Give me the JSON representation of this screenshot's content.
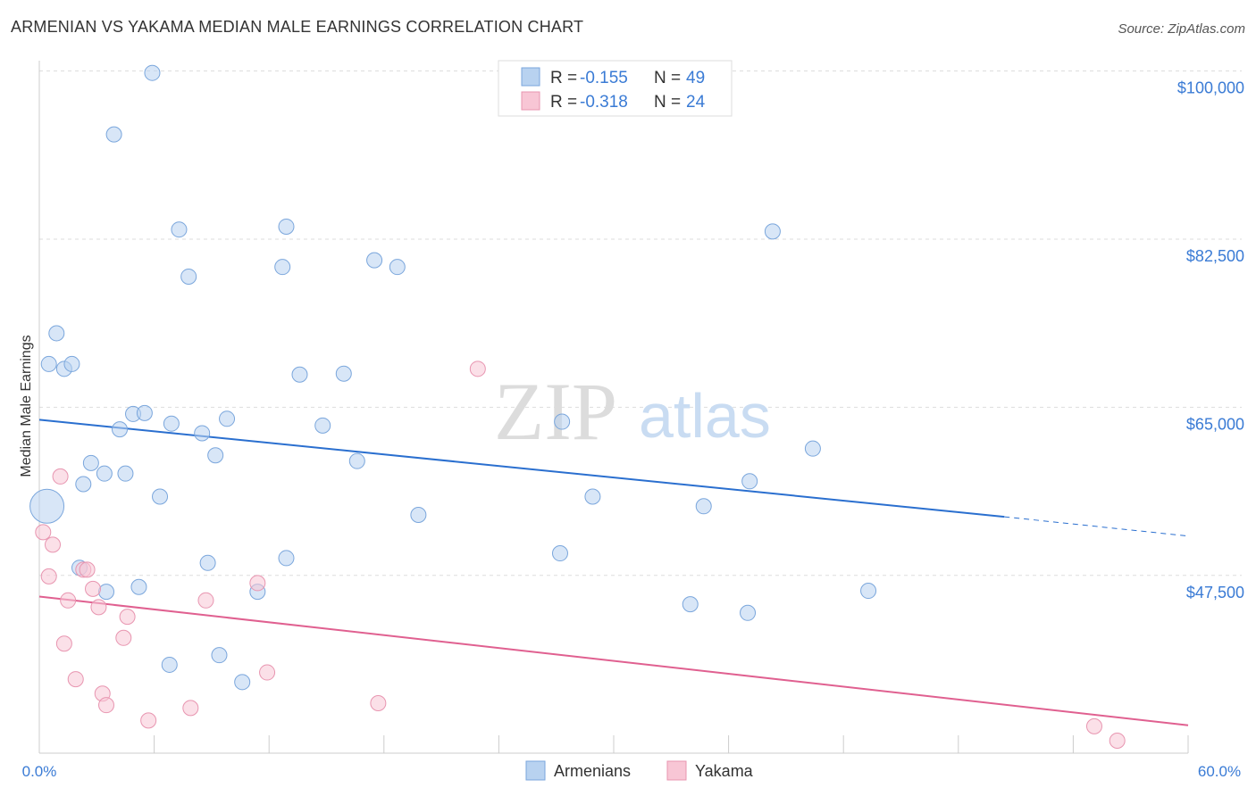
{
  "header": {
    "title": "ARMENIAN VS YAKAMA MEDIAN MALE EARNINGS CORRELATION CHART",
    "source": "Source: ZipAtlas.com"
  },
  "watermark": {
    "zip": "ZIP",
    "atlas": "atlas"
  },
  "legend": {
    "r_label": "R =",
    "n_label": "N =",
    "rows": [
      {
        "r": "-0.155",
        "n": "49"
      },
      {
        "r": "-0.318",
        "n": "24"
      }
    ]
  },
  "bottom_legend": [
    "Armenians",
    "Yakama"
  ],
  "colors": {
    "blue_fill": "#b8d2f0",
    "blue_stroke": "#7aa6dc",
    "blue_line": "#2a6fcf",
    "pink_fill": "#f8c6d5",
    "pink_stroke": "#e895b0",
    "pink_line": "#e06090",
    "grid": "#dddddd",
    "tick_text": "#3a7bd5"
  },
  "chart_data": {
    "type": "scatter",
    "title": "ARMENIAN VS YAKAMA MEDIAN MALE EARNINGS CORRELATION CHART",
    "ylabel": "Median Male Earnings",
    "xlabel": "",
    "xlim": [
      0,
      60
    ],
    "ylim": [
      29000,
      102000
    ],
    "x_tick_labels": [
      "0.0%",
      "60.0%"
    ],
    "y_ticks": [
      {
        "value": 100000,
        "label": "$100,000"
      },
      {
        "value": 82500,
        "label": "$82,500"
      },
      {
        "value": 65000,
        "label": "$65,000"
      },
      {
        "value": 47500,
        "label": "$47,500"
      }
    ],
    "grid": true,
    "legend_position": "top-center",
    "series": [
      {
        "name": "Armenians",
        "r": -0.155,
        "n": 49,
        "trend": {
          "x": [
            0,
            50.4
          ],
          "y": [
            63700,
            53600
          ]
        },
        "trend_dashed": {
          "x": [
            50.4,
            60
          ],
          "y": [
            53600,
            51600
          ]
        },
        "points": [
          {
            "x": 0.4,
            "y": 54700,
            "big": true
          },
          {
            "x": 0.5,
            "y": 69500
          },
          {
            "x": 0.9,
            "y": 72700
          },
          {
            "x": 1.3,
            "y": 69000
          },
          {
            "x": 1.7,
            "y": 69500
          },
          {
            "x": 2.3,
            "y": 57000
          },
          {
            "x": 2.7,
            "y": 59200
          },
          {
            "x": 3.4,
            "y": 58100
          },
          {
            "x": 2.1,
            "y": 48300
          },
          {
            "x": 3.5,
            "y": 45800
          },
          {
            "x": 4.2,
            "y": 62700
          },
          {
            "x": 4.5,
            "y": 58100
          },
          {
            "x": 4.9,
            "y": 64300
          },
          {
            "x": 5.5,
            "y": 64400
          },
          {
            "x": 5.2,
            "y": 46300
          },
          {
            "x": 6.3,
            "y": 55700
          },
          {
            "x": 6.9,
            "y": 63300
          },
          {
            "x": 8.5,
            "y": 62300
          },
          {
            "x": 8.8,
            "y": 48800
          },
          {
            "x": 9.2,
            "y": 60000
          },
          {
            "x": 9.8,
            "y": 63800
          },
          {
            "x": 9.4,
            "y": 39200
          },
          {
            "x": 6.8,
            "y": 38200
          },
          {
            "x": 10.6,
            "y": 36400
          },
          {
            "x": 11.4,
            "y": 45800
          },
          {
            "x": 12.9,
            "y": 49300
          },
          {
            "x": 13.6,
            "y": 68400
          },
          {
            "x": 14.8,
            "y": 63100
          },
          {
            "x": 15.9,
            "y": 68500
          },
          {
            "x": 16.6,
            "y": 59400
          },
          {
            "x": 3.9,
            "y": 93400
          },
          {
            "x": 5.9,
            "y": 99800
          },
          {
            "x": 7.3,
            "y": 83500
          },
          {
            "x": 7.8,
            "y": 78600
          },
          {
            "x": 12.7,
            "y": 79600
          },
          {
            "x": 12.9,
            "y": 83800
          },
          {
            "x": 17.5,
            "y": 80300
          },
          {
            "x": 18.7,
            "y": 79600
          },
          {
            "x": 19.8,
            "y": 53800
          },
          {
            "x": 27.3,
            "y": 63500
          },
          {
            "x": 27.2,
            "y": 49800
          },
          {
            "x": 28.9,
            "y": 55700
          },
          {
            "x": 34.0,
            "y": 44500
          },
          {
            "x": 34.7,
            "y": 54700
          },
          {
            "x": 37.0,
            "y": 43600
          },
          {
            "x": 37.1,
            "y": 57300
          },
          {
            "x": 38.3,
            "y": 83300
          },
          {
            "x": 40.4,
            "y": 60700
          },
          {
            "x": 43.3,
            "y": 45900
          }
        ]
      },
      {
        "name": "Yakama",
        "r": -0.318,
        "n": 24,
        "trend": {
          "x": [
            0,
            60
          ],
          "y": [
            45300,
            31900
          ]
        },
        "points": [
          {
            "x": 0.2,
            "y": 52000
          },
          {
            "x": 0.5,
            "y": 47400
          },
          {
            "x": 0.7,
            "y": 50700
          },
          {
            "x": 1.1,
            "y": 57800
          },
          {
            "x": 1.3,
            "y": 40400
          },
          {
            "x": 1.5,
            "y": 44900
          },
          {
            "x": 1.9,
            "y": 36700
          },
          {
            "x": 2.3,
            "y": 48100
          },
          {
            "x": 2.5,
            "y": 48100
          },
          {
            "x": 2.8,
            "y": 46100
          },
          {
            "x": 3.1,
            "y": 44200
          },
          {
            "x": 3.3,
            "y": 35200
          },
          {
            "x": 3.5,
            "y": 34000
          },
          {
            "x": 4.4,
            "y": 41000
          },
          {
            "x": 4.6,
            "y": 43200
          },
          {
            "x": 5.7,
            "y": 32400
          },
          {
            "x": 7.9,
            "y": 33700
          },
          {
            "x": 8.7,
            "y": 44900
          },
          {
            "x": 11.4,
            "y": 46700
          },
          {
            "x": 11.9,
            "y": 37400
          },
          {
            "x": 17.7,
            "y": 34200
          },
          {
            "x": 22.9,
            "y": 69000
          },
          {
            "x": 55.1,
            "y": 31800
          },
          {
            "x": 56.3,
            "y": 30300
          }
        ]
      }
    ]
  }
}
